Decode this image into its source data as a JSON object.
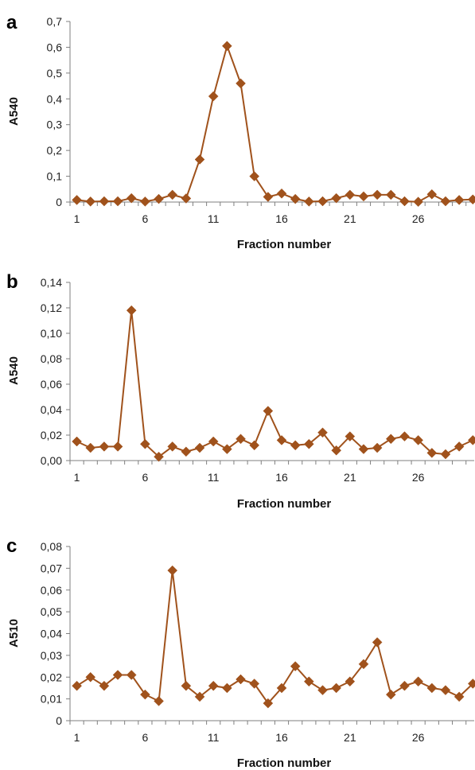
{
  "chart_data": [
    {
      "panel_label": "a",
      "type": "line",
      "xlabel": "Fraction number",
      "ylabel": "A540",
      "ylim": [
        0,
        0.7
      ],
      "yticks": [
        "0",
        "0,1",
        "0,2",
        "0,3",
        "0,4",
        "0,5",
        "0,6",
        "0,7"
      ],
      "xticks": [
        "1",
        "6",
        "11",
        "16",
        "21",
        "26"
      ],
      "x": [
        1,
        2,
        3,
        4,
        5,
        6,
        7,
        8,
        9,
        10,
        11,
        12,
        13,
        14,
        15,
        16,
        17,
        18,
        19,
        20,
        21,
        22,
        23,
        24,
        25,
        26,
        27,
        28,
        29,
        30
      ],
      "values": [
        0.008,
        0.002,
        0.003,
        0.003,
        0.015,
        0.002,
        0.012,
        0.028,
        0.014,
        0.165,
        0.41,
        0.605,
        0.46,
        0.1,
        0.02,
        0.033,
        0.012,
        0.002,
        0.003,
        0.015,
        0.028,
        0.022,
        0.028,
        0.028,
        0.003,
        0.001,
        0.03,
        0.003,
        0.008,
        0.01
      ],
      "color": "#a0521c"
    },
    {
      "panel_label": "b",
      "type": "line",
      "xlabel": "Fraction number",
      "ylabel": "A540",
      "ylim": [
        0,
        0.14
      ],
      "yticks": [
        "0,00",
        "0,02",
        "0,04",
        "0,06",
        "0,08",
        "0,10",
        "0,12",
        "0,14"
      ],
      "xticks": [
        "1",
        "6",
        "11",
        "16",
        "21",
        "26"
      ],
      "x": [
        1,
        2,
        3,
        4,
        5,
        6,
        7,
        8,
        9,
        10,
        11,
        12,
        13,
        14,
        15,
        16,
        17,
        18,
        19,
        20,
        21,
        22,
        23,
        24,
        25,
        26,
        27,
        28,
        29,
        30
      ],
      "values": [
        0.015,
        0.01,
        0.011,
        0.011,
        0.118,
        0.013,
        0.003,
        0.011,
        0.007,
        0.01,
        0.015,
        0.009,
        0.017,
        0.012,
        0.039,
        0.016,
        0.012,
        0.013,
        0.022,
        0.008,
        0.019,
        0.009,
        0.01,
        0.017,
        0.019,
        0.016,
        0.006,
        0.005,
        0.011,
        0.016
      ],
      "color": "#a0521c"
    },
    {
      "panel_label": "c",
      "type": "line",
      "xlabel": "Fraction number",
      "ylabel": "A510",
      "ylim": [
        0,
        0.08
      ],
      "yticks": [
        "0",
        "0,01",
        "0,02",
        "0,03",
        "0,04",
        "0,05",
        "0,06",
        "0,07",
        "0,08"
      ],
      "xticks": [
        "1",
        "6",
        "11",
        "16",
        "21",
        "26"
      ],
      "x": [
        1,
        2,
        3,
        4,
        5,
        6,
        7,
        8,
        9,
        10,
        11,
        12,
        13,
        14,
        15,
        16,
        17,
        18,
        19,
        20,
        21,
        22,
        23,
        24,
        25,
        26,
        27,
        28,
        29,
        30
      ],
      "values": [
        0.016,
        0.02,
        0.016,
        0.021,
        0.021,
        0.012,
        0.009,
        0.069,
        0.016,
        0.011,
        0.016,
        0.015,
        0.019,
        0.017,
        0.008,
        0.015,
        0.025,
        0.018,
        0.014,
        0.015,
        0.018,
        0.026,
        0.036,
        0.012,
        0.016,
        0.018,
        0.015,
        0.014,
        0.011,
        0.017
      ],
      "color": "#a0521c"
    }
  ]
}
